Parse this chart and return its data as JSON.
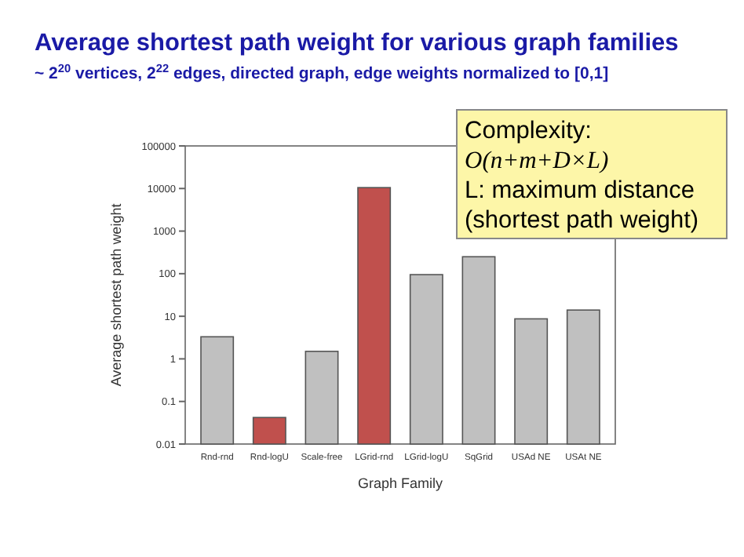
{
  "chart_data": {
    "type": "bar",
    "title": "Average shortest path weight for various graph families",
    "subtitle": "~ 2$^{20}$ vertices, 2$^{22}$ edges, directed graph, edge weights normalized to [0,1]",
    "xlabel": "Graph Family",
    "ylabel": "Average shortest path weight",
    "categories": [
      "Rnd-rnd",
      "Rnd-logU",
      "Scale-free",
      "LGrid-rnd",
      "LGrid-logU",
      "SqGrid",
      "USAd NE",
      "USAt NE"
    ],
    "values": [
      3.3,
      0.042,
      1.5,
      10500,
      95,
      250,
      8.7,
      14
    ],
    "colors": [
      "#c0c0c0",
      "#c0504d",
      "#c0c0c0",
      "#c0504d",
      "#c0c0c0",
      "#c0c0c0",
      "#c0c0c0",
      "#c0c0c0"
    ],
    "log": true,
    "ylim": [
      0.01,
      100000
    ],
    "yticks": [
      0.01,
      0.1,
      1,
      10,
      100,
      1000,
      10000,
      100000
    ],
    "grid": false,
    "annotations": [
      "Complexity:",
      "O(n+m+D×L)",
      "L: maximum distance",
      "(shortest path weight)"
    ]
  }
}
